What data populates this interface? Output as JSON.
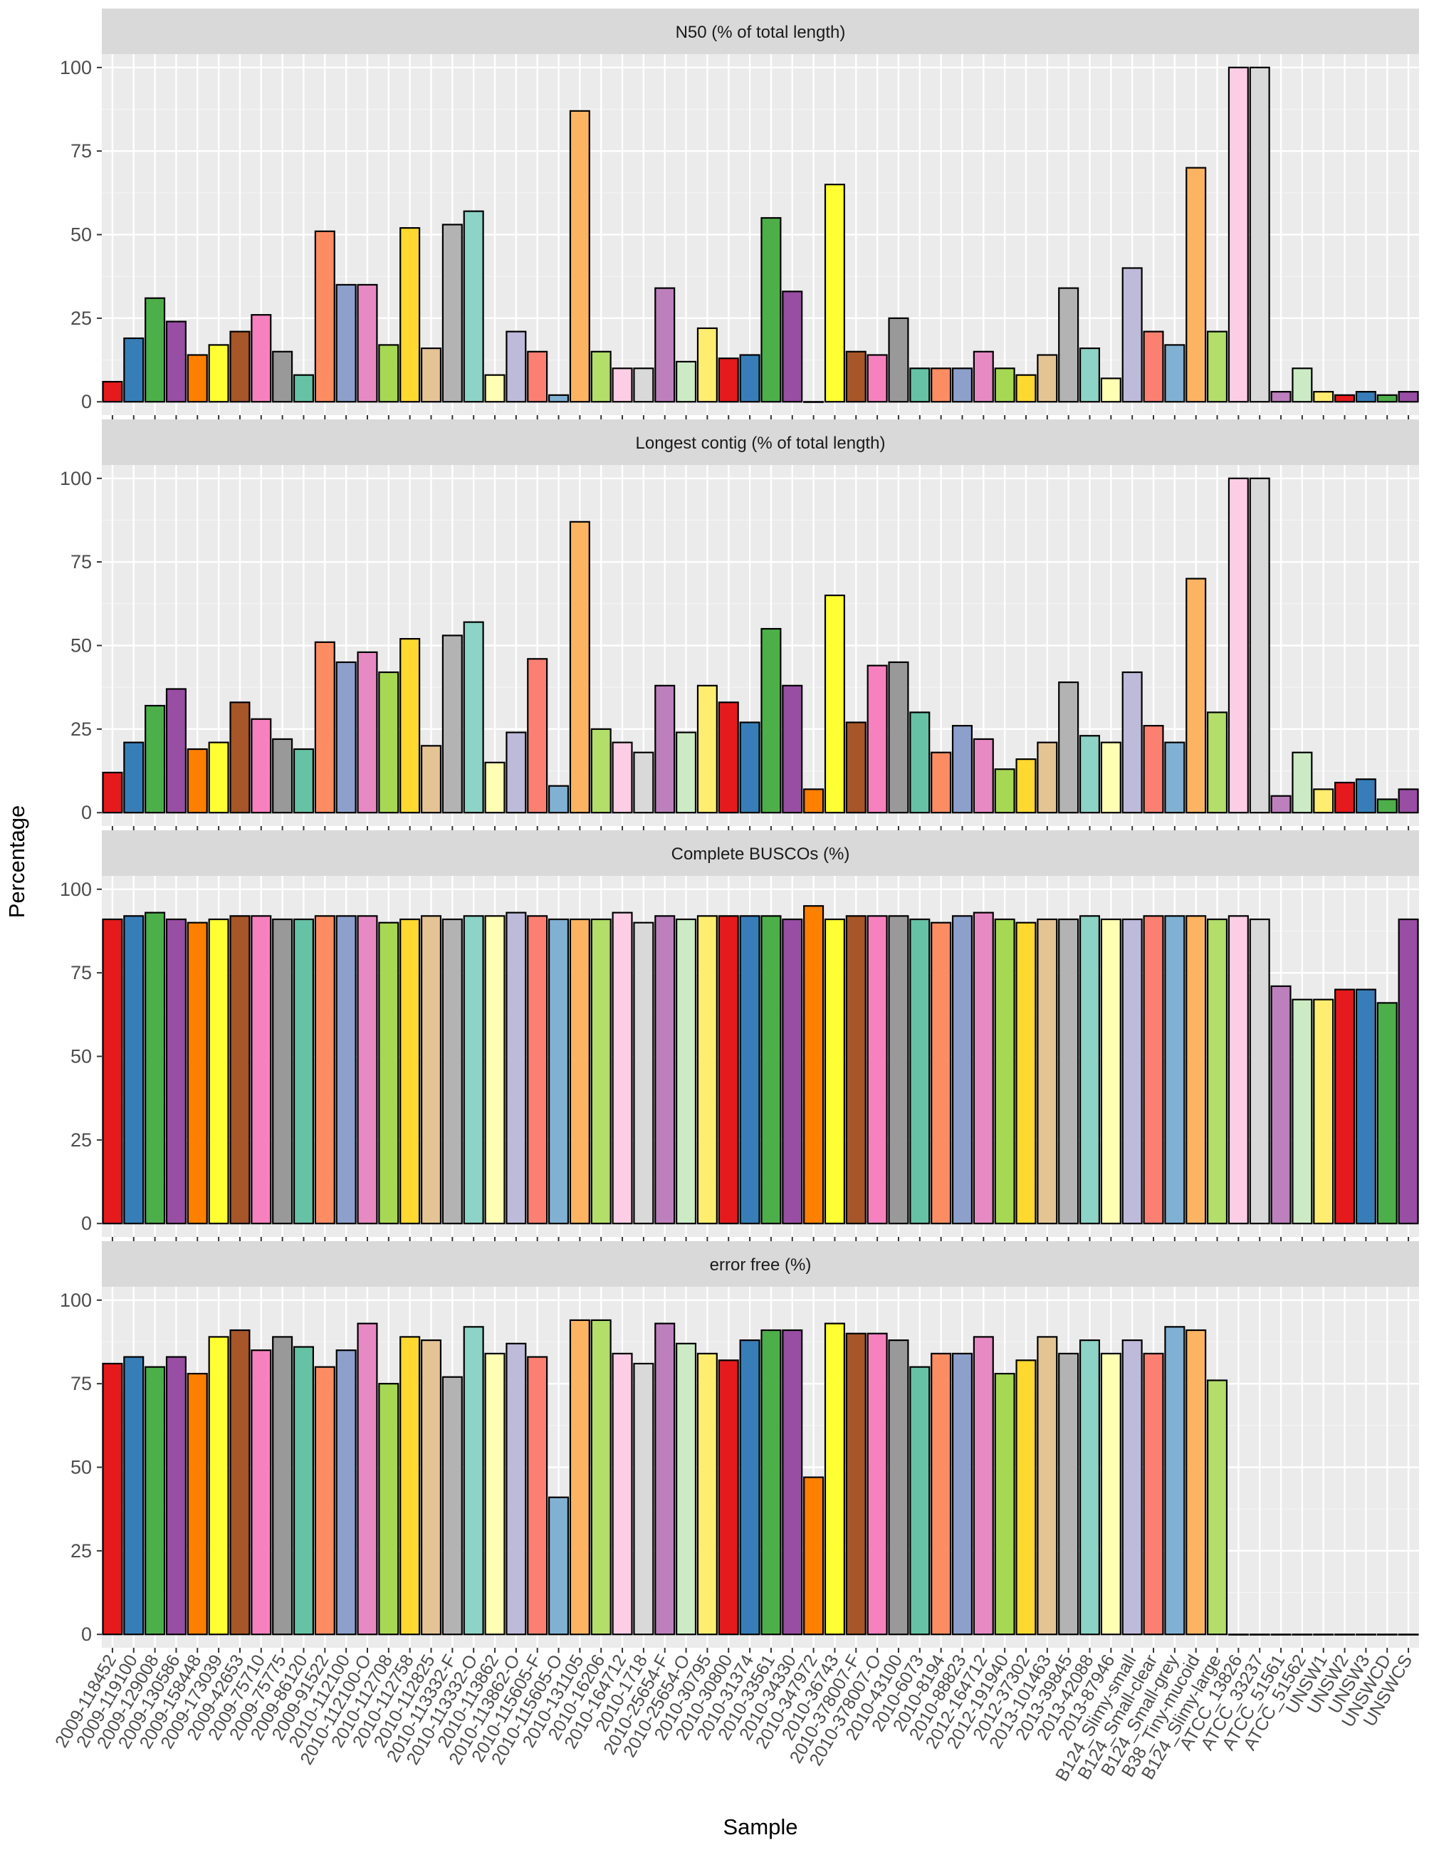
{
  "chart_data": {
    "type": "bar",
    "facet_layout": "vertical",
    "xlabel": "Sample",
    "ylabel": "Percentage",
    "ylim": [
      0,
      100
    ],
    "yticks": [
      0,
      25,
      50,
      75,
      100
    ],
    "grid": true,
    "legend": "none",
    "categories": [
      "2009-118452",
      "2009-119100",
      "2009-129008",
      "2009-130586",
      "2009-158448",
      "2009-173039",
      "2009-42653",
      "2009-75710",
      "2009-75775",
      "2009-86120",
      "2009-91522",
      "2010-112100",
      "2010-112100-O",
      "2010-112708",
      "2010-112758",
      "2010-112825",
      "2010-113332-F",
      "2010-113332-O",
      "2010-113862",
      "2010-113862-O",
      "2010-115605-F",
      "2010-115605-O",
      "2010-131105",
      "2010-16206",
      "2010-164712",
      "2010-1718",
      "2010-25654-F",
      "2010-25654-O",
      "2010-30795",
      "2010-30800",
      "2010-31374",
      "2010-33561",
      "2010-34330",
      "2010-347972",
      "2010-36743",
      "2010-378007-F",
      "2010-378007-O",
      "2010-43100",
      "2010-6073",
      "2010-8194",
      "2010-88823",
      "2012-164712",
      "2012-191940",
      "2012-37302",
      "2013-101463",
      "2013-39845",
      "2013-42088",
      "2013-87946",
      "B124_Slimy-small",
      "B124_Small-clear",
      "B124_Small-grey",
      "B38_Tiny-mucoid",
      "B124_Slimy-large",
      "ATCC_13826",
      "ATCC_33237",
      "ATCC_51561",
      "ATCC_51562",
      "UNSW1",
      "UNSW2",
      "UNSW3",
      "UNSWCD",
      "UNSWCS"
    ],
    "bar_colors": [
      "#E41A1C",
      "#377EB8",
      "#4DAF4A",
      "#984EA3",
      "#FF7F00",
      "#FFFF33",
      "#A65628",
      "#F781BF",
      "#999999",
      "#66C2A5",
      "#FC8D62",
      "#8DA0CB",
      "#E78AC3",
      "#A6D854",
      "#FFD92F",
      "#E5C494",
      "#B3B3B3",
      "#8DD3C7",
      "#FFFFB3",
      "#BEBADA",
      "#FB8072",
      "#80B1D3",
      "#FDB462",
      "#B3DE69",
      "#FCCDE5",
      "#D9D9D9",
      "#BC80BD",
      "#CCEBC5",
      "#FFED6F",
      "#E41A1C",
      "#377EB8",
      "#4DAF4A",
      "#984EA3",
      "#FF7F00",
      "#FFFF33",
      "#A65628",
      "#F781BF",
      "#999999",
      "#66C2A5",
      "#FC8D62",
      "#8DA0CB",
      "#E78AC3",
      "#A6D854",
      "#FFD92F",
      "#E5C494",
      "#B3B3B3",
      "#8DD3C7",
      "#FFFFB3",
      "#BEBADA",
      "#FB8072",
      "#80B1D3",
      "#FDB462",
      "#B3DE69",
      "#FCCDE5",
      "#D9D9D9",
      "#BC80BD",
      "#CCEBC5",
      "#FFED6F",
      "#E41A1C",
      "#377EB8",
      "#4DAF4A",
      "#984EA3"
    ],
    "facets": [
      {
        "title": "N50 (% of total length)",
        "values": [
          6,
          19,
          31,
          24,
          14,
          17,
          21,
          26,
          15,
          8,
          51,
          35,
          35,
          17,
          52,
          16,
          53,
          57,
          8,
          21,
          15,
          2,
          87,
          15,
          10,
          10,
          34,
          12,
          22,
          13,
          14,
          55,
          33,
          0,
          65,
          15,
          14,
          25,
          10,
          10,
          10,
          15,
          10,
          8,
          14,
          34,
          16,
          7,
          40,
          21,
          17,
          70,
          21,
          100,
          100,
          3,
          10,
          3,
          2,
          3,
          2,
          3
        ]
      },
      {
        "title": "Longest contig (% of total length)",
        "values": [
          12,
          21,
          32,
          37,
          19,
          21,
          33,
          28,
          22,
          19,
          51,
          45,
          48,
          42,
          52,
          20,
          53,
          57,
          15,
          24,
          46,
          8,
          87,
          25,
          21,
          18,
          38,
          24,
          38,
          33,
          27,
          55,
          38,
          7,
          65,
          27,
          44,
          45,
          30,
          18,
          26,
          22,
          13,
          16,
          21,
          39,
          23,
          21,
          42,
          26,
          21,
          70,
          30,
          100,
          100,
          5,
          18,
          7,
          9,
          10,
          4,
          7
        ]
      },
      {
        "title": "Complete BUSCOs (%)",
        "values": [
          91,
          92,
          93,
          91,
          90,
          91,
          92,
          92,
          91,
          91,
          92,
          92,
          92,
          90,
          91,
          92,
          91,
          92,
          92,
          93,
          92,
          91,
          91,
          91,
          93,
          90,
          92,
          91,
          92,
          92,
          92,
          92,
          91,
          95,
          91,
          92,
          92,
          92,
          91,
          90,
          92,
          93,
          91,
          90,
          91,
          91,
          92,
          91,
          91,
          92,
          92,
          92,
          91,
          92,
          91,
          71,
          67,
          67,
          70,
          70,
          66,
          91
        ]
      },
      {
        "title": "error free (%)",
        "values": [
          81,
          83,
          80,
          83,
          78,
          89,
          91,
          85,
          89,
          86,
          80,
          85,
          93,
          75,
          89,
          88,
          77,
          92,
          84,
          87,
          83,
          41,
          94,
          94,
          84,
          81,
          93,
          87,
          84,
          82,
          88,
          91,
          91,
          47,
          93,
          90,
          90,
          88,
          80,
          84,
          84,
          89,
          78,
          82,
          89,
          84,
          88,
          84,
          88,
          84,
          92,
          91,
          76,
          0,
          0,
          0,
          0,
          0,
          0,
          0,
          0,
          0
        ]
      }
    ]
  }
}
